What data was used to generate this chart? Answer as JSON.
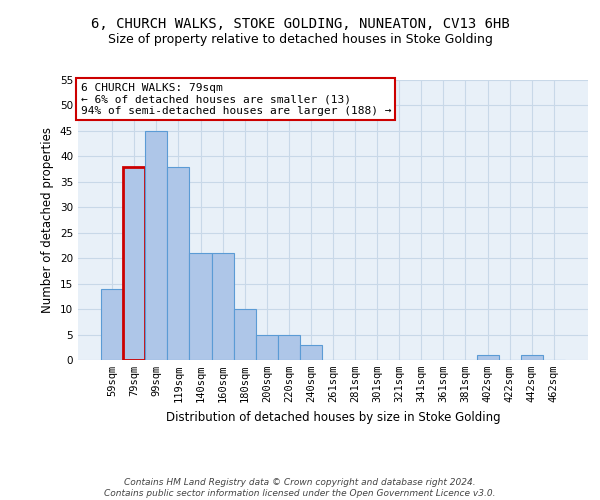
{
  "title_line1": "6, CHURCH WALKS, STOKE GOLDING, NUNEATON, CV13 6HB",
  "title_line2": "Size of property relative to detached houses in Stoke Golding",
  "xlabel": "Distribution of detached houses by size in Stoke Golding",
  "ylabel": "Number of detached properties",
  "footer_line1": "Contains HM Land Registry data © Crown copyright and database right 2024.",
  "footer_line2": "Contains public sector information licensed under the Open Government Licence v3.0.",
  "categories": [
    "59sqm",
    "79sqm",
    "99sqm",
    "119sqm",
    "140sqm",
    "160sqm",
    "180sqm",
    "200sqm",
    "220sqm",
    "240sqm",
    "261sqm",
    "281sqm",
    "301sqm",
    "321sqm",
    "341sqm",
    "361sqm",
    "381sqm",
    "402sqm",
    "422sqm",
    "442sqm",
    "462sqm"
  ],
  "values": [
    14,
    38,
    45,
    38,
    21,
    21,
    10,
    5,
    5,
    3,
    0,
    0,
    0,
    0,
    0,
    0,
    0,
    1,
    0,
    1,
    0
  ],
  "bar_color": "#aec6e8",
  "bar_edge_color": "#5b9bd5",
  "highlight_bar_index": 1,
  "highlight_bar_edge_color": "#cc0000",
  "annotation_box_text": "6 CHURCH WALKS: 79sqm\n← 6% of detached houses are smaller (13)\n94% of semi-detached houses are larger (188) →",
  "annotation_box_edge_color": "#cc0000",
  "annotation_box_fill_color": "#ffffff",
  "ylim": [
    0,
    55
  ],
  "yticks": [
    0,
    5,
    10,
    15,
    20,
    25,
    30,
    35,
    40,
    45,
    50,
    55
  ],
  "background_color": "#ffffff",
  "plot_bg_color": "#e8f0f8",
  "grid_color": "#c8d8e8",
  "title_fontsize": 10,
  "subtitle_fontsize": 9,
  "axis_label_fontsize": 8.5,
  "tick_fontsize": 7.5,
  "annotation_fontsize": 8,
  "footer_fontsize": 6.5
}
